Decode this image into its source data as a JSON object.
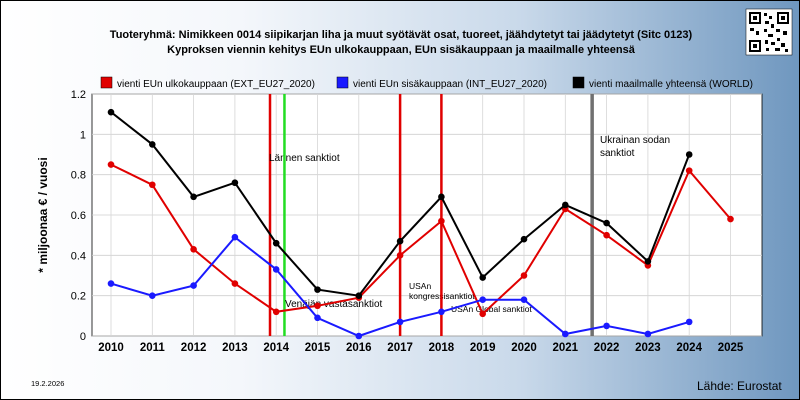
{
  "chart_data": {
    "type": "line",
    "title": "Tuoteryhmä: Nimikkeen 0014 siipikarjan liha ja muut syötävät osat, tuoreet, jäähdytetyt tai jäädytetyt (Sitc 0123)",
    "subtitle": "Kyproksen viennin kehitys EUn ulkokauppaan, EUn sisäkauppaan ja maailmalle yhteensä",
    "ylabel": "* miljoonaa € / vuosi",
    "xlabel": "",
    "ylim": [
      0,
      1.2
    ],
    "yticks": [
      "0",
      "0.2",
      "0.4",
      "0.6",
      "0.8",
      "1",
      "1.2"
    ],
    "categories": [
      "2010",
      "2011",
      "2012",
      "2013",
      "2014",
      "2015",
      "2016",
      "2017",
      "2018",
      "2019",
      "2020",
      "2021",
      "2022",
      "2023",
      "2024",
      "2025"
    ],
    "grid": true,
    "legend_position": "top",
    "series": [
      {
        "name": "vienti EUn ulkokauppaan (EXT_EU27_2020)",
        "color": "#e00000",
        "values": [
          0.85,
          0.75,
          0.43,
          0.26,
          0.12,
          0.15,
          0.19,
          0.4,
          0.57,
          0.11,
          0.3,
          0.63,
          0.5,
          0.35,
          0.82,
          0.58
        ]
      },
      {
        "name": "vienti EUn sisäkauppaan (INT_EU27_2020)",
        "color": "#1a1aff",
        "values": [
          0.26,
          0.2,
          0.25,
          0.49,
          0.33,
          0.09,
          0.0,
          0.07,
          0.12,
          0.18,
          0.18,
          0.01,
          0.05,
          0.01,
          0.07,
          null
        ]
      },
      {
        "name": "vienti maailmalle yhteensä (WORLD)",
        "color": "#000000",
        "values": [
          1.11,
          0.95,
          0.69,
          0.76,
          0.46,
          0.23,
          0.2,
          0.47,
          0.69,
          0.29,
          0.48,
          0.65,
          0.56,
          0.37,
          0.9,
          null
        ]
      }
    ],
    "event_lines": [
      {
        "x": 2013.85,
        "color": "#e00000",
        "label": "Lännen sanktiot"
      },
      {
        "x": 2014.2,
        "color": "#22dd22",
        "label": "Venäjän vastasanktiot"
      },
      {
        "x": 2017.0,
        "color": "#e00000",
        "label": "USAn kongressisanktiot"
      },
      {
        "x": 2018.0,
        "color": "#e00000",
        "label": "USAn Global sanktiot"
      },
      {
        "x": 2021.65,
        "color": "#707070",
        "label": "Ukrainan sodan sanktiot"
      }
    ]
  },
  "footer": {
    "date": "19.2.2026",
    "source": "Lähde: Eurostat"
  },
  "qr_icon": "qr-code-icon"
}
